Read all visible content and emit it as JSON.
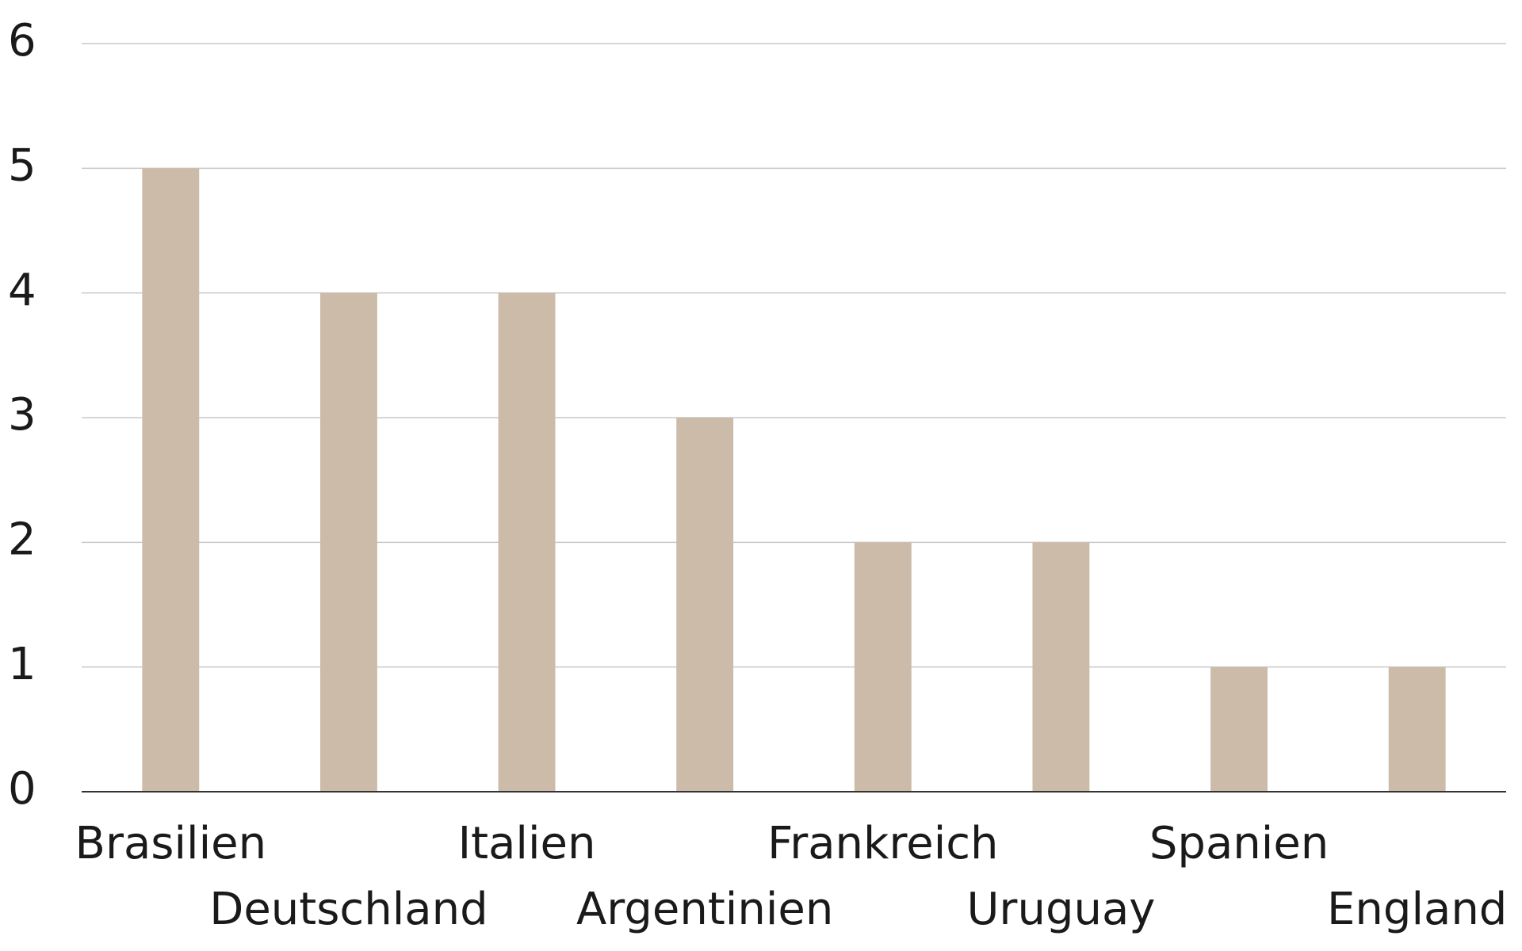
{
  "chart_data": {
    "type": "bar",
    "categories": [
      "Brasilien",
      "Deutschland",
      "Italien",
      "Argentinien",
      "Frankreich",
      "Uruguay",
      "Spanien",
      "England"
    ],
    "values": [
      5,
      4,
      4,
      3,
      2,
      2,
      1,
      1
    ],
    "color": "#cbbba8",
    "ylim": [
      0,
      6
    ],
    "yticks": [
      0,
      1,
      2,
      3,
      4,
      5,
      6
    ],
    "grid": true
  }
}
